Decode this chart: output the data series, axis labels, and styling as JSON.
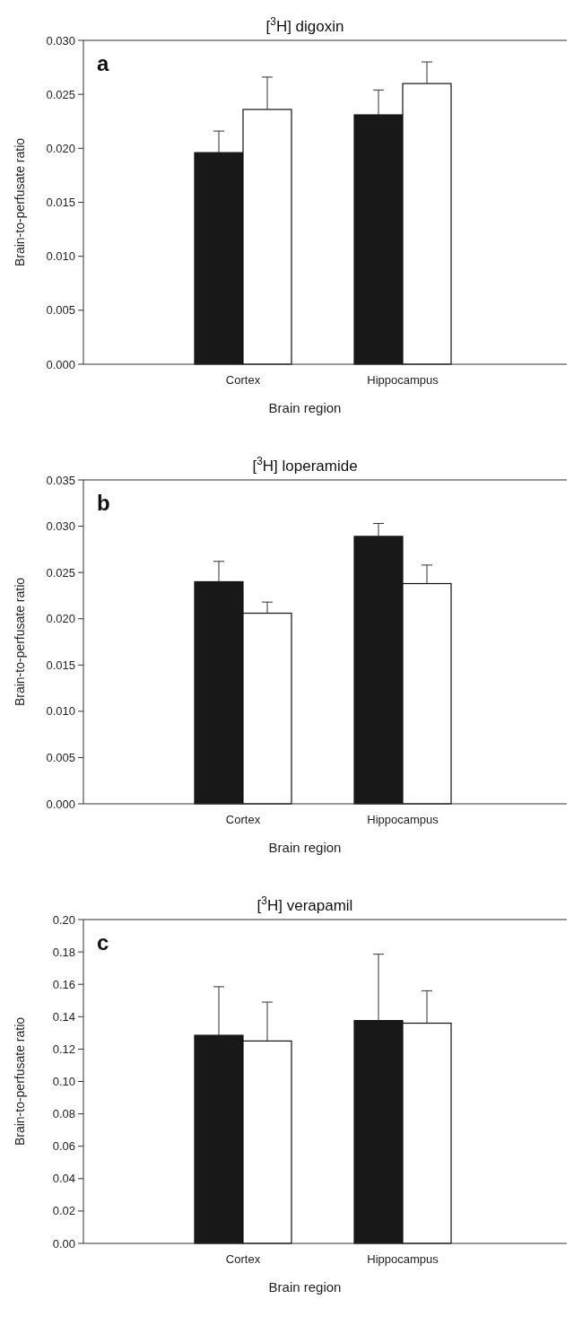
{
  "chart_data": [
    {
      "type": "bar",
      "title": "[$^{3}$H] digoxin",
      "xlabel": "Brain region",
      "ylabel": "Brain-to-perfusate ratio",
      "annotations": [
        "a"
      ],
      "categories": [
        "Cortex",
        "Hippocampus"
      ],
      "ylim": [
        0,
        0.03
      ],
      "yticks": [
        {
          "value": 0,
          "label": "0.000"
        },
        {
          "value": 0.005,
          "label": "0.005"
        },
        {
          "value": 0.01,
          "label": "0.010"
        },
        {
          "value": 0.015,
          "label": "0.015"
        },
        {
          "value": 0.02,
          "label": "0.020"
        },
        {
          "value": 0.025,
          "label": "0.025"
        },
        {
          "value": 0.03,
          "label": "0.030"
        }
      ],
      "series": [
        {
          "color": "#181818",
          "values": [
            0.0196,
            0.0231
          ],
          "errors": [
            0.002,
            0.0023
          ]
        },
        {
          "color": "#ffffff",
          "values": [
            0.0236,
            0.026
          ],
          "errors": [
            0.003,
            0.002
          ]
        }
      ]
    },
    {
      "type": "bar",
      "title": "[$^{3}$H] loperamide",
      "xlabel": "Brain region",
      "ylabel": "Brain-to-perfusate ratio",
      "annotations": [
        "b"
      ],
      "categories": [
        "Cortex",
        "Hippocampus"
      ],
      "ylim": [
        0,
        0.035
      ],
      "yticks": [
        {
          "value": 0,
          "label": "0.000"
        },
        {
          "value": 0.005,
          "label": "0.005"
        },
        {
          "value": 0.01,
          "label": "0.010"
        },
        {
          "value": 0.015,
          "label": "0.015"
        },
        {
          "value": 0.02,
          "label": "0.020"
        },
        {
          "value": 0.025,
          "label": "0.025"
        },
        {
          "value": 0.03,
          "label": "0.030"
        },
        {
          "value": 0.035,
          "label": "0.035"
        }
      ],
      "series": [
        {
          "color": "#181818",
          "values": [
            0.024,
            0.0289
          ],
          "errors": [
            0.0022,
            0.0014
          ]
        },
        {
          "color": "#ffffff",
          "values": [
            0.0206,
            0.0238
          ],
          "errors": [
            0.0012,
            0.002
          ]
        }
      ]
    },
    {
      "type": "bar",
      "title": "[$^{3}$H] verapamil",
      "xlabel": "Brain region",
      "ylabel": "Brain-to-perfusate ratio",
      "annotations": [
        "c"
      ],
      "categories": [
        "Cortex",
        "Hippocampus"
      ],
      "ylim": [
        0,
        0.2
      ],
      "yticks": [
        {
          "value": 0,
          "label": "0.00"
        },
        {
          "value": 0.02,
          "label": "0.02"
        },
        {
          "value": 0.04,
          "label": "0.04"
        },
        {
          "value": 0.06,
          "label": "0.06"
        },
        {
          "value": 0.08,
          "label": "0.08"
        },
        {
          "value": 0.1,
          "label": "0.10"
        },
        {
          "value": 0.12,
          "label": "0.12"
        },
        {
          "value": 0.14,
          "label": "0.14"
        },
        {
          "value": 0.16,
          "label": "0.16"
        },
        {
          "value": 0.18,
          "label": "0.18"
        },
        {
          "value": 0.2,
          "label": "0.20"
        }
      ],
      "series": [
        {
          "color": "#181818",
          "values": [
            0.1285,
            0.1376
          ],
          "errors": [
            0.03,
            0.041
          ]
        },
        {
          "color": "#ffffff",
          "values": [
            0.125,
            0.136
          ],
          "errors": [
            0.024,
            0.02
          ]
        }
      ]
    }
  ]
}
